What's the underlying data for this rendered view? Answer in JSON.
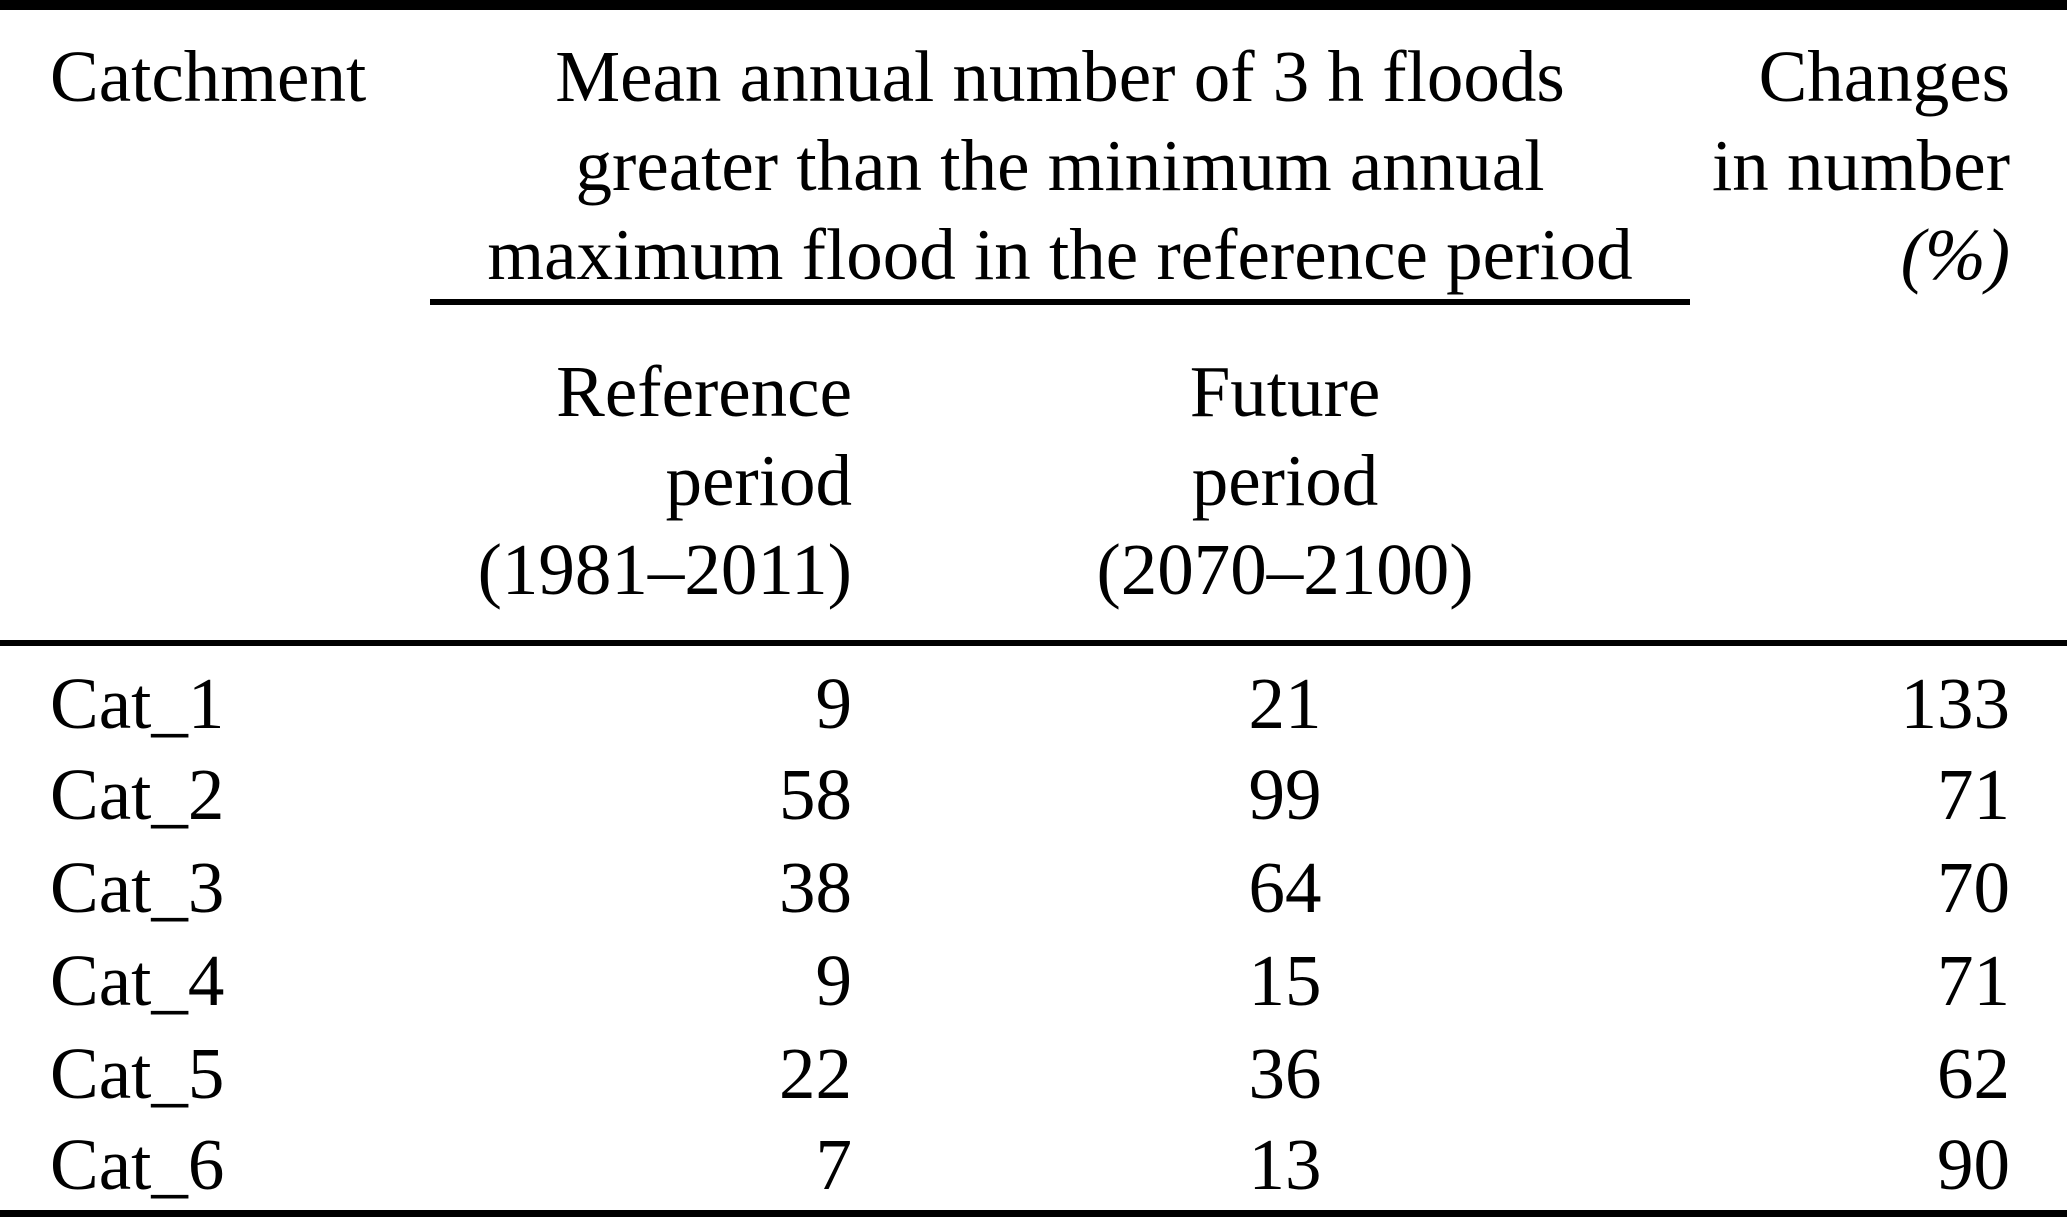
{
  "colors": {
    "background": "#ffffff",
    "text": "#000000",
    "rule": "#000000"
  },
  "table": {
    "header": {
      "catchment": "Catchment",
      "span_lines": [
        "Mean annual number of 3 h floods",
        "greater than the minimum annual",
        "maximum flood in the reference period"
      ],
      "changes_lines": [
        "Changes",
        "in number",
        "(%)"
      ],
      "reference_lines": [
        "Reference",
        "period",
        "(1981–2011)"
      ],
      "future_lines": [
        "Future",
        "period",
        "(2070–2100)"
      ]
    },
    "rows": [
      {
        "catchment": "Cat_1",
        "reference": "9",
        "future": "21",
        "change": "133"
      },
      {
        "catchment": "Cat_2",
        "reference": "58",
        "future": "99",
        "change": "71"
      },
      {
        "catchment": "Cat_3",
        "reference": "38",
        "future": "64",
        "change": "70"
      },
      {
        "catchment": "Cat_4",
        "reference": "9",
        "future": "15",
        "change": "71"
      },
      {
        "catchment": "Cat_5",
        "reference": "22",
        "future": "36",
        "change": "62"
      },
      {
        "catchment": "Cat_6",
        "reference": "7",
        "future": "13",
        "change": "90"
      }
    ]
  }
}
